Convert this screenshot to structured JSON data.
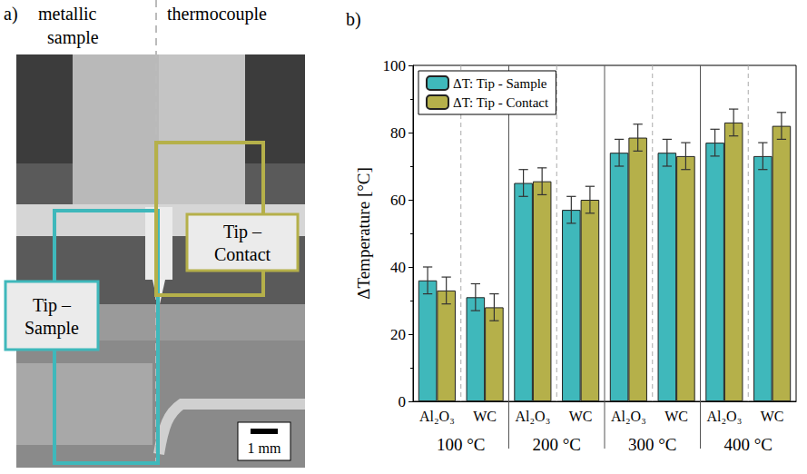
{
  "panel_a": {
    "label": "a)",
    "left_title": "metallic sample",
    "right_title": "thermocouple",
    "boxes": [
      {
        "text": "Tip – Sample",
        "color": "#3fb8bb"
      },
      {
        "text": "Tip – Contact",
        "color": "#b5b04a"
      }
    ],
    "scale_bar": "1 mm"
  },
  "panel_b": {
    "label": "b)"
  },
  "chart_data": {
    "type": "bar",
    "y_label": "ΔTemperature [°C]",
    "categories": [
      "Al₂O₃",
      "WC",
      "Al₂O₃",
      "WC",
      "Al₂O₃",
      "WC",
      "Al₂O₃",
      "WC"
    ],
    "groups": [
      "100 °C",
      "200 °C",
      "300 °C",
      "400 °C"
    ],
    "series": [
      {
        "name": "ΔT: Tip - Sample",
        "color": "#3fb8bb",
        "values": [
          36,
          31,
          65,
          57,
          74,
          74,
          77,
          73
        ],
        "errors": [
          4,
          4,
          4,
          4,
          4,
          4,
          4,
          4
        ]
      },
      {
        "name": "ΔT: Tip - Contact",
        "color": "#b5b04a",
        "values": [
          33,
          28,
          65.5,
          60,
          78.5,
          73,
          83,
          82
        ],
        "errors": [
          4,
          4,
          4,
          4,
          4,
          4,
          4,
          4
        ]
      }
    ],
    "ylim": [
      0,
      100
    ],
    "yticks": [
      0,
      20,
      40,
      60,
      80,
      100
    ],
    "legend": "upper left",
    "grid": false
  }
}
